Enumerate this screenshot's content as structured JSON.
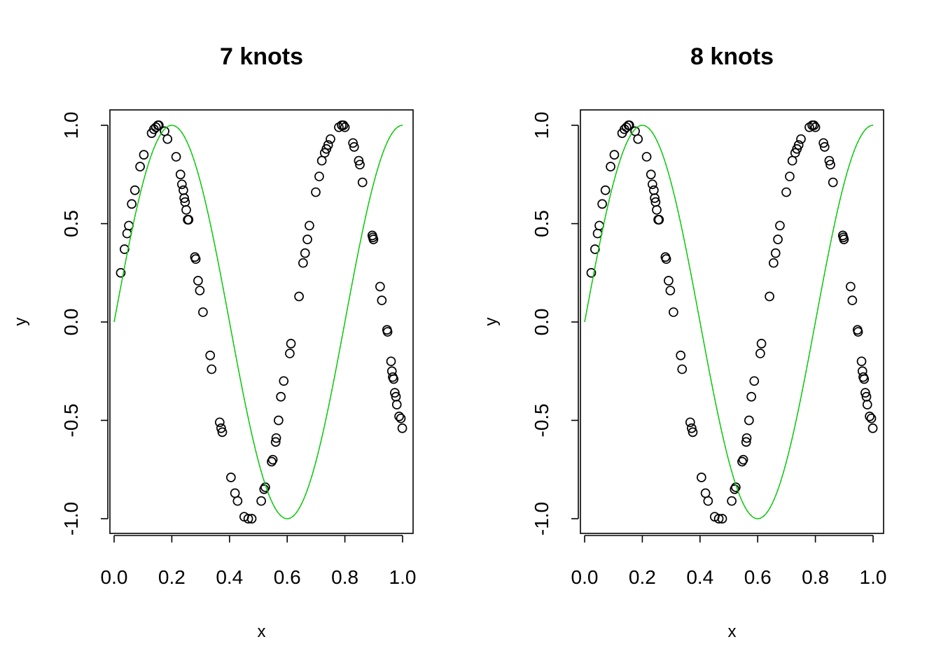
{
  "chart_data": [
    {
      "type": "scatter",
      "title": "7 knots",
      "xlabel": "x",
      "ylabel": "y",
      "xlim": [
        0,
        1
      ],
      "ylim": [
        -1,
        1
      ],
      "xticks": [
        "0.0",
        "0.2",
        "0.4",
        "0.6",
        "0.8",
        "1.0"
      ],
      "yticks": [
        "-1.0",
        "-0.5",
        "0.0",
        "0.5",
        "1.0"
      ],
      "grid": false,
      "points": {
        "x": [
          0.023,
          0.036,
          0.045,
          0.051,
          0.061,
          0.072,
          0.09,
          0.103,
          0.13,
          0.138,
          0.145,
          0.152,
          0.155,
          0.175,
          0.185,
          0.215,
          0.23,
          0.235,
          0.24,
          0.243,
          0.246,
          0.25,
          0.255,
          0.258,
          0.28,
          0.283,
          0.291,
          0.297,
          0.308,
          0.333,
          0.338,
          0.366,
          0.371,
          0.375,
          0.405,
          0.419,
          0.428,
          0.451,
          0.465,
          0.477,
          0.51,
          0.52,
          0.524,
          0.546,
          0.55,
          0.56,
          0.562,
          0.57,
          0.578,
          0.588,
          0.609,
          0.613,
          0.641,
          0.655,
          0.662,
          0.67,
          0.677,
          0.699,
          0.711,
          0.72,
          0.73,
          0.736,
          0.742,
          0.75,
          0.779,
          0.789,
          0.795,
          0.8,
          0.828,
          0.832,
          0.848,
          0.852,
          0.861,
          0.895,
          0.897,
          0.899,
          0.922,
          0.928,
          0.946,
          0.948,
          0.96,
          0.963,
          0.966,
          0.969,
          0.973,
          0.977,
          0.98,
          0.988,
          0.994,
          0.999
        ],
        "y": [
          0.25,
          0.37,
          0.45,
          0.49,
          0.6,
          0.67,
          0.79,
          0.85,
          0.96,
          0.98,
          0.99,
          1.0,
          1.0,
          0.97,
          0.93,
          0.84,
          0.75,
          0.7,
          0.67,
          0.63,
          0.61,
          0.57,
          0.52,
          0.52,
          0.33,
          0.32,
          0.21,
          0.16,
          0.05,
          -0.17,
          -0.24,
          -0.51,
          -0.54,
          -0.56,
          -0.79,
          -0.87,
          -0.91,
          -0.99,
          -1.0,
          -1.0,
          -0.91,
          -0.85,
          -0.84,
          -0.71,
          -0.7,
          -0.61,
          -0.59,
          -0.5,
          -0.38,
          -0.3,
          -0.16,
          -0.11,
          0.13,
          0.3,
          0.35,
          0.42,
          0.49,
          0.66,
          0.74,
          0.82,
          0.86,
          0.88,
          0.9,
          0.93,
          0.99,
          1.0,
          1.0,
          0.99,
          0.91,
          0.89,
          0.82,
          0.8,
          0.71,
          0.44,
          0.43,
          0.42,
          0.18,
          0.11,
          -0.04,
          -0.05,
          -0.2,
          -0.25,
          -0.28,
          -0.29,
          -0.36,
          -0.38,
          -0.42,
          -0.48,
          -0.49,
          -0.54
        ]
      },
      "fitted_curve": {
        "function": "sin(2.5*pi*x)",
        "x_range": [
          0,
          1
        ],
        "colors": [
          "#00cc00",
          "#777777"
        ]
      }
    },
    {
      "type": "scatter",
      "title": "8 knots",
      "xlabel": "x",
      "ylabel": "y",
      "xlim": [
        0,
        1
      ],
      "ylim": [
        -1,
        1
      ],
      "xticks": [
        "0.0",
        "0.2",
        "0.4",
        "0.6",
        "0.8",
        "1.0"
      ],
      "yticks": [
        "-1.0",
        "-0.5",
        "0.0",
        "0.5",
        "1.0"
      ],
      "grid": false,
      "points": {
        "x": [
          0.023,
          0.036,
          0.045,
          0.051,
          0.061,
          0.072,
          0.09,
          0.103,
          0.13,
          0.138,
          0.145,
          0.152,
          0.155,
          0.175,
          0.185,
          0.215,
          0.23,
          0.235,
          0.24,
          0.243,
          0.246,
          0.25,
          0.255,
          0.258,
          0.28,
          0.283,
          0.291,
          0.297,
          0.308,
          0.333,
          0.338,
          0.366,
          0.371,
          0.375,
          0.405,
          0.419,
          0.428,
          0.451,
          0.465,
          0.477,
          0.51,
          0.52,
          0.524,
          0.546,
          0.55,
          0.56,
          0.562,
          0.57,
          0.578,
          0.588,
          0.609,
          0.613,
          0.641,
          0.655,
          0.662,
          0.67,
          0.677,
          0.699,
          0.711,
          0.72,
          0.73,
          0.736,
          0.742,
          0.75,
          0.779,
          0.789,
          0.795,
          0.8,
          0.828,
          0.832,
          0.848,
          0.852,
          0.861,
          0.895,
          0.897,
          0.899,
          0.922,
          0.928,
          0.946,
          0.948,
          0.96,
          0.963,
          0.966,
          0.969,
          0.973,
          0.977,
          0.98,
          0.988,
          0.994,
          0.999
        ],
        "y": [
          0.25,
          0.37,
          0.45,
          0.49,
          0.6,
          0.67,
          0.79,
          0.85,
          0.96,
          0.98,
          0.99,
          1.0,
          1.0,
          0.97,
          0.93,
          0.84,
          0.75,
          0.7,
          0.67,
          0.63,
          0.61,
          0.57,
          0.52,
          0.52,
          0.33,
          0.32,
          0.21,
          0.16,
          0.05,
          -0.17,
          -0.24,
          -0.51,
          -0.54,
          -0.56,
          -0.79,
          -0.87,
          -0.91,
          -0.99,
          -1.0,
          -1.0,
          -0.91,
          -0.85,
          -0.84,
          -0.71,
          -0.7,
          -0.61,
          -0.59,
          -0.5,
          -0.38,
          -0.3,
          -0.16,
          -0.11,
          0.13,
          0.3,
          0.35,
          0.42,
          0.49,
          0.66,
          0.74,
          0.82,
          0.86,
          0.88,
          0.9,
          0.93,
          0.99,
          1.0,
          1.0,
          0.99,
          0.91,
          0.89,
          0.82,
          0.8,
          0.71,
          0.44,
          0.43,
          0.42,
          0.18,
          0.11,
          -0.04,
          -0.05,
          -0.2,
          -0.25,
          -0.28,
          -0.29,
          -0.36,
          -0.38,
          -0.42,
          -0.48,
          -0.49,
          -0.54
        ]
      },
      "fitted_curve": {
        "function": "sin(2.5*pi*x)",
        "x_range": [
          0,
          1
        ],
        "colors": [
          "#00cc00",
          "#777777"
        ]
      }
    }
  ]
}
